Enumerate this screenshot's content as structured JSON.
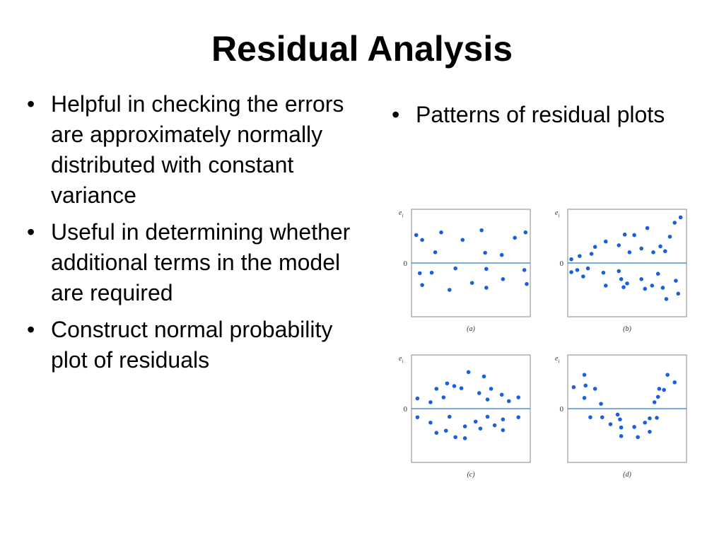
{
  "slide": {
    "title": "Residual Analysis",
    "left_bullets": [
      "Helpful in checking the errors are approximately normally distributed with constant variance",
      "Useful in determining whether additional terms in the model are required",
      "Construct normal probability plot of residuals"
    ],
    "right_bullets": [
      "Patterns of residual plots"
    ],
    "bullet_glyph": "•"
  },
  "colors": {
    "point": "#1a5fe0",
    "zero_line": "#4a90d9",
    "frame": "#888888"
  },
  "chart_data": [
    {
      "type": "scatter",
      "caption": "(a)",
      "ylabel": "e",
      "ylabel_sub": "i",
      "zero_label": "0",
      "xlim": [
        0,
        1
      ],
      "ylim": [
        -1,
        1
      ],
      "points": [
        [
          0.04,
          0.52
        ],
        [
          0.09,
          0.43
        ],
        [
          0.2,
          0.2
        ],
        [
          0.25,
          0.57
        ],
        [
          0.43,
          0.43
        ],
        [
          0.59,
          0.61
        ],
        [
          0.62,
          0.19
        ],
        [
          0.76,
          0.15
        ],
        [
          0.87,
          0.47
        ],
        [
          0.96,
          0.57
        ],
        [
          0.07,
          -0.19
        ],
        [
          0.09,
          -0.41
        ],
        [
          0.17,
          -0.18
        ],
        [
          0.32,
          -0.5
        ],
        [
          0.37,
          -0.1
        ],
        [
          0.51,
          -0.37
        ],
        [
          0.63,
          -0.11
        ],
        [
          0.63,
          -0.46
        ],
        [
          0.77,
          -0.3
        ],
        [
          0.95,
          -0.13
        ],
        [
          0.97,
          -0.39
        ]
      ]
    },
    {
      "type": "scatter",
      "caption": "(b)",
      "ylabel": "e",
      "ylabel_sub": "i",
      "zero_label": "0",
      "xlim": [
        0,
        1
      ],
      "ylim": [
        -1,
        1
      ],
      "points": [
        [
          0.03,
          0.07
        ],
        [
          0.1,
          0.13
        ],
        [
          0.2,
          0.17
        ],
        [
          0.23,
          0.3
        ],
        [
          0.32,
          0.4
        ],
        [
          0.43,
          0.33
        ],
        [
          0.48,
          0.53
        ],
        [
          0.52,
          0.2
        ],
        [
          0.56,
          0.52
        ],
        [
          0.62,
          0.27
        ],
        [
          0.67,
          0.65
        ],
        [
          0.72,
          0.2
        ],
        [
          0.78,
          0.31
        ],
        [
          0.82,
          0.22
        ],
        [
          0.86,
          0.49
        ],
        [
          0.9,
          0.75
        ],
        [
          0.95,
          0.85
        ],
        [
          0.03,
          -0.17
        ],
        [
          0.08,
          -0.13
        ],
        [
          0.13,
          -0.25
        ],
        [
          0.17,
          -0.1
        ],
        [
          0.3,
          -0.18
        ],
        [
          0.32,
          -0.42
        ],
        [
          0.43,
          -0.15
        ],
        [
          0.45,
          -0.3
        ],
        [
          0.47,
          -0.45
        ],
        [
          0.5,
          -0.38
        ],
        [
          0.62,
          -0.3
        ],
        [
          0.65,
          -0.48
        ],
        [
          0.71,
          -0.42
        ],
        [
          0.76,
          -0.2
        ],
        [
          0.8,
          -0.46
        ],
        [
          0.83,
          -0.67
        ],
        [
          0.91,
          -0.33
        ],
        [
          0.93,
          -0.57
        ]
      ]
    },
    {
      "type": "scatter",
      "caption": "(c)",
      "ylabel": "e",
      "ylabel_sub": "i",
      "zero_label": "0",
      "xlim": [
        0,
        1
      ],
      "ylim": [
        -1,
        1
      ],
      "points": [
        [
          0.05,
          0.19
        ],
        [
          0.16,
          0.12
        ],
        [
          0.21,
          0.37
        ],
        [
          0.27,
          0.21
        ],
        [
          0.3,
          0.47
        ],
        [
          0.36,
          0.42
        ],
        [
          0.42,
          0.38
        ],
        [
          0.48,
          0.68
        ],
        [
          0.57,
          0.29
        ],
        [
          0.61,
          0.6
        ],
        [
          0.64,
          0.17
        ],
        [
          0.67,
          0.37
        ],
        [
          0.76,
          0.26
        ],
        [
          0.82,
          0.14
        ],
        [
          0.9,
          0.21
        ],
        [
          0.05,
          -0.16
        ],
        [
          0.21,
          -0.45
        ],
        [
          0.16,
          -0.26
        ],
        [
          0.29,
          -0.41
        ],
        [
          0.32,
          -0.15
        ],
        [
          0.37,
          -0.53
        ],
        [
          0.45,
          -0.55
        ],
        [
          0.45,
          -0.33
        ],
        [
          0.54,
          -0.24
        ],
        [
          0.58,
          -0.37
        ],
        [
          0.64,
          -0.15
        ],
        [
          0.7,
          -0.31
        ],
        [
          0.77,
          -0.2
        ],
        [
          0.77,
          -0.4
        ],
        [
          0.9,
          -0.16
        ]
      ]
    },
    {
      "type": "scatter",
      "caption": "(d)",
      "ylabel": "e",
      "ylabel_sub": "i",
      "zero_label": "0",
      "xlim": [
        0,
        1
      ],
      "ylim": [
        -1,
        1
      ],
      "points": [
        [
          0.05,
          0.4
        ],
        [
          0.14,
          0.63
        ],
        [
          0.15,
          0.43
        ],
        [
          0.14,
          0.2
        ],
        [
          0.23,
          0.37
        ],
        [
          0.28,
          0.09
        ],
        [
          0.19,
          -0.16
        ],
        [
          0.29,
          -0.16
        ],
        [
          0.36,
          -0.29
        ],
        [
          0.42,
          -0.11
        ],
        [
          0.44,
          -0.2
        ],
        [
          0.45,
          -0.35
        ],
        [
          0.45,
          -0.51
        ],
        [
          0.56,
          -0.34
        ],
        [
          0.59,
          -0.53
        ],
        [
          0.65,
          -0.26
        ],
        [
          0.69,
          -0.18
        ],
        [
          0.69,
          -0.43
        ],
        [
          0.75,
          -0.17
        ],
        [
          0.73,
          0.12
        ],
        [
          0.76,
          0.22
        ],
        [
          0.77,
          0.37
        ],
        [
          0.81,
          0.35
        ],
        [
          0.84,
          0.63
        ],
        [
          0.9,
          0.49
        ]
      ]
    }
  ]
}
